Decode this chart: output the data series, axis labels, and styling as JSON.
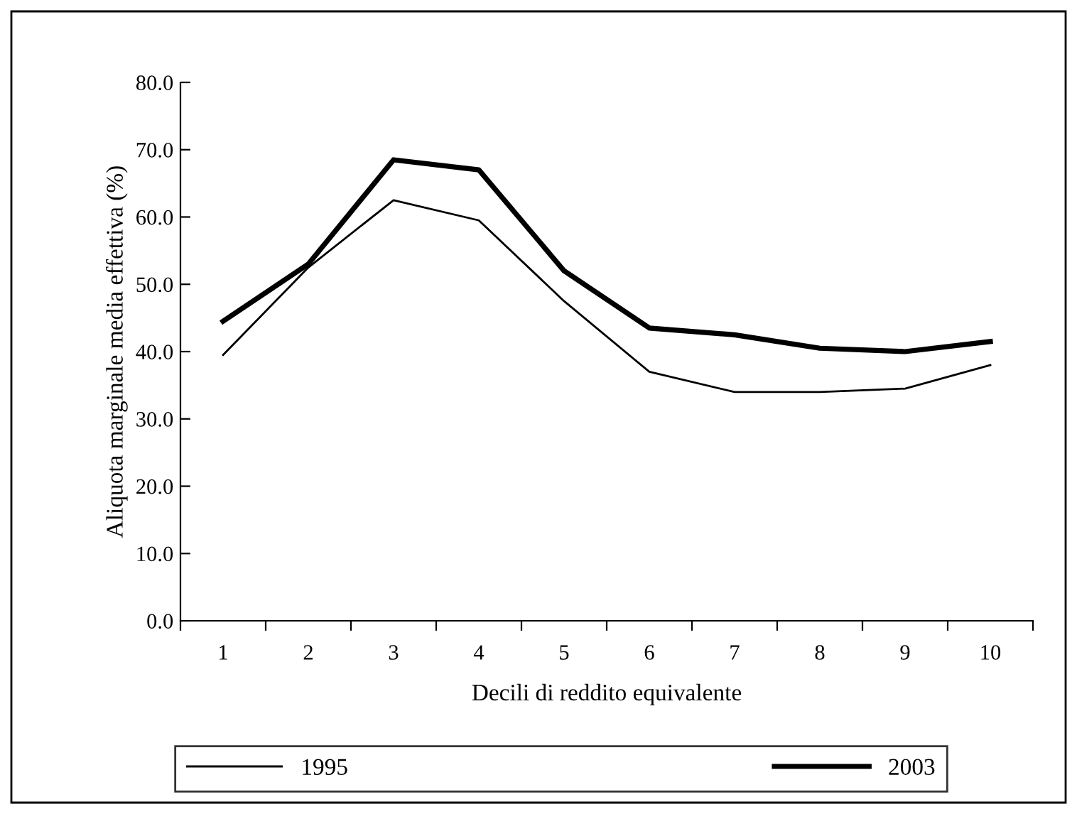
{
  "chart_data": {
    "type": "line",
    "xlabel": "Decili di reddito equivalente",
    "ylabel": "Aliquota marginale media effettiva (%)",
    "categories": [
      "1",
      "2",
      "3",
      "4",
      "5",
      "6",
      "7",
      "8",
      "9",
      "10"
    ],
    "series": [
      {
        "name": "1995",
        "color": "#000000",
        "values": [
          39.5,
          52.5,
          62.5,
          59.5,
          47.5,
          37.0,
          34.0,
          34.0,
          34.5,
          38.0
        ]
      },
      {
        "name": "2003",
        "color": "#000000",
        "values": [
          44.5,
          53.0,
          68.5,
          67.0,
          52.0,
          43.5,
          42.5,
          40.5,
          40.0,
          41.5
        ]
      }
    ],
    "ylim": [
      0,
      80
    ],
    "yticks": [
      {
        "value": 0,
        "label": "0.0"
      },
      {
        "value": 10,
        "label": "10.0"
      },
      {
        "value": 20,
        "label": "20.0"
      },
      {
        "value": 30,
        "label": "30.0"
      },
      {
        "value": 40,
        "label": "40.0"
      },
      {
        "value": 50,
        "label": "50.0"
      },
      {
        "value": 60,
        "label": "60.0"
      },
      {
        "value": 70,
        "label": "70.0"
      },
      {
        "value": 80,
        "label": "80.0"
      }
    ],
    "grid": false,
    "legend": "bottom",
    "marker": "none",
    "line_style": "solid"
  }
}
